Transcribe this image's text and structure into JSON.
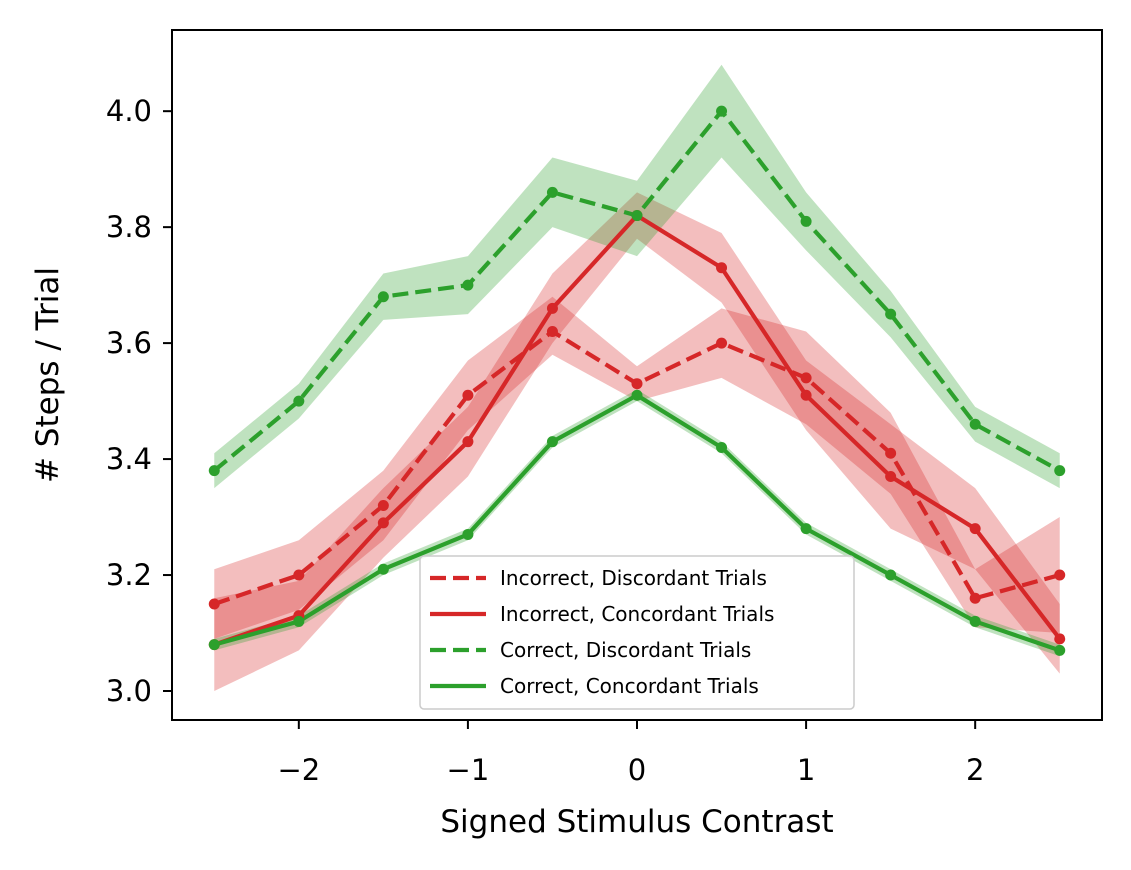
{
  "chart_data": {
    "type": "line",
    "title": "",
    "xlabel": "Signed Stimulus Contrast",
    "ylabel": "# Steps / Trial",
    "xlim": [
      -2.75,
      2.75
    ],
    "ylim": [
      2.95,
      4.14
    ],
    "xticks": [
      -2,
      -1,
      0,
      1,
      2
    ],
    "xtick_labels": [
      "−2",
      "−1",
      "0",
      "1",
      "2"
    ],
    "yticks": [
      3.0,
      3.2,
      3.4,
      3.6,
      3.8,
      4.0
    ],
    "ytick_labels": [
      "3.0",
      "3.2",
      "3.4",
      "3.6",
      "3.8",
      "4.0"
    ],
    "grid": false,
    "legend_position": "lower center",
    "x": [
      -2.5,
      -2.0,
      -1.5,
      -1.0,
      -0.5,
      0.0,
      0.5,
      1.0,
      1.5,
      2.0,
      2.5
    ],
    "series": [
      {
        "name": "Incorrect, Discordant Trials",
        "color": "#d62728",
        "style": "dashed",
        "values": [
          3.15,
          3.2,
          3.32,
          3.51,
          3.62,
          3.53,
          3.6,
          3.54,
          3.41,
          3.16,
          3.2
        ],
        "lower": [
          3.09,
          3.14,
          3.26,
          3.45,
          3.58,
          3.5,
          3.54,
          3.46,
          3.34,
          3.11,
          3.1
        ],
        "upper": [
          3.21,
          3.26,
          3.38,
          3.57,
          3.68,
          3.56,
          3.66,
          3.62,
          3.48,
          3.21,
          3.3
        ]
      },
      {
        "name": "Incorrect, Concordant Trials",
        "color": "#d62728",
        "style": "solid",
        "values": [
          3.08,
          3.13,
          3.29,
          3.43,
          3.66,
          3.82,
          3.73,
          3.51,
          3.37,
          3.28,
          3.09
        ],
        "lower": [
          3.0,
          3.07,
          3.23,
          3.37,
          3.6,
          3.78,
          3.67,
          3.45,
          3.28,
          3.21,
          3.03
        ],
        "upper": [
          3.16,
          3.19,
          3.35,
          3.49,
          3.72,
          3.86,
          3.79,
          3.57,
          3.46,
          3.35,
          3.15
        ]
      },
      {
        "name": "Correct, Discordant Trials",
        "color": "#2ca02c",
        "style": "dashed",
        "values": [
          3.38,
          3.5,
          3.68,
          3.7,
          3.86,
          3.82,
          4.0,
          3.81,
          3.65,
          3.46,
          3.38
        ],
        "lower": [
          3.35,
          3.47,
          3.64,
          3.65,
          3.8,
          3.75,
          3.92,
          3.76,
          3.61,
          3.43,
          3.35
        ],
        "upper": [
          3.41,
          3.53,
          3.72,
          3.75,
          3.92,
          3.88,
          4.08,
          3.86,
          3.69,
          3.49,
          3.41
        ]
      },
      {
        "name": "Correct, Concordant Trials",
        "color": "#2ca02c",
        "style": "solid",
        "values": [
          3.08,
          3.12,
          3.21,
          3.27,
          3.43,
          3.51,
          3.42,
          3.28,
          3.2,
          3.12,
          3.07
        ],
        "lower": [
          3.07,
          3.11,
          3.2,
          3.26,
          3.42,
          3.5,
          3.41,
          3.27,
          3.19,
          3.11,
          3.06
        ],
        "upper": [
          3.09,
          3.13,
          3.22,
          3.28,
          3.44,
          3.52,
          3.43,
          3.29,
          3.21,
          3.13,
          3.08
        ]
      }
    ]
  }
}
